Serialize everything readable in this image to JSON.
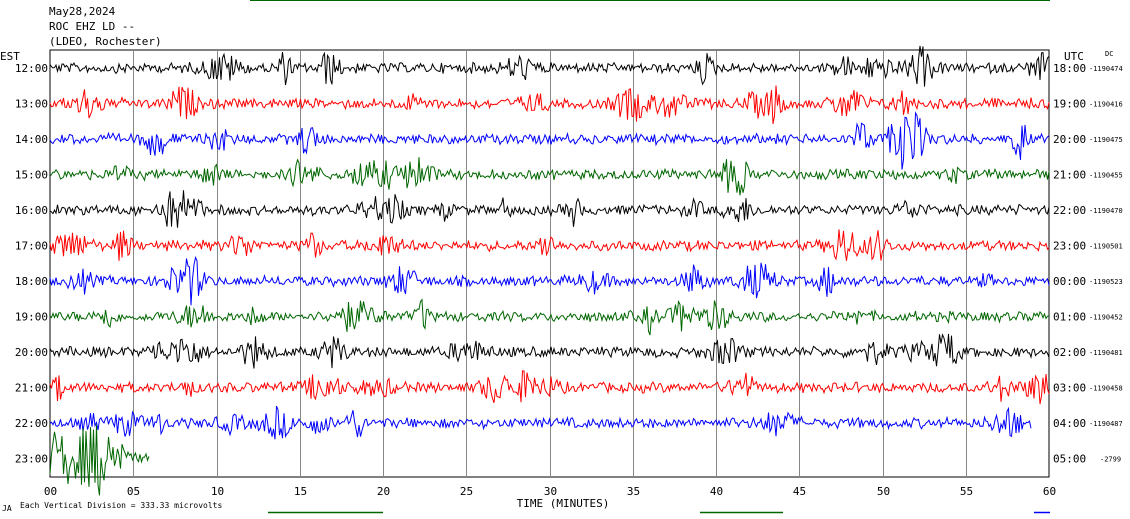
{
  "header": {
    "date": "May28,2024",
    "station": "ROC EHZ LD --",
    "network": "(LDEO, Rochester)"
  },
  "left_axis_label": "EST",
  "right_axis_label": "UTC",
  "dc_label": "DC",
  "footer_note": "Each Vertical Division =  333.33 microvolts",
  "footer_mark": "JA",
  "chart_data": {
    "type": "line",
    "title": "",
    "xlabel": "TIME (MINUTES)",
    "ylabel": "",
    "xlim": [
      0,
      60
    ],
    "x_ticks": [
      0,
      5,
      10,
      15,
      20,
      25,
      30,
      35,
      40,
      45,
      50,
      55,
      60
    ],
    "x_tick_labels": [
      "00",
      "05",
      "10",
      "15",
      "20",
      "25",
      "30",
      "35",
      "40",
      "45",
      "50",
      "55",
      "60"
    ],
    "grid": "vertical",
    "series_colors": [
      "#000000",
      "#ff0000",
      "#0000ff",
      "#006600"
    ],
    "traces": [
      {
        "est": "12:00",
        "utc": "18:00",
        "dc": "-1190474",
        "color": "#000000",
        "end_minute": 60
      },
      {
        "est": "13:00",
        "utc": "19:00",
        "dc": "-1190416",
        "color": "#ff0000",
        "end_minute": 60
      },
      {
        "est": "14:00",
        "utc": "20:00",
        "dc": "-1190475",
        "color": "#0000ff",
        "end_minute": 60
      },
      {
        "est": "15:00",
        "utc": "21:00",
        "dc": "-1190455",
        "color": "#006600",
        "end_minute": 60
      },
      {
        "est": "16:00",
        "utc": "22:00",
        "dc": "-1190470",
        "color": "#000000",
        "end_minute": 60
      },
      {
        "est": "17:00",
        "utc": "23:00",
        "dc": "-1190501",
        "color": "#ff0000",
        "end_minute": 60
      },
      {
        "est": "18:00",
        "utc": "00:00",
        "dc": "-1190523",
        "color": "#0000ff",
        "end_minute": 60
      },
      {
        "est": "19:00",
        "utc": "01:00",
        "dc": "-1190452",
        "color": "#006600",
        "end_minute": 60
      },
      {
        "est": "20:00",
        "utc": "02:00",
        "dc": "-1190481",
        "color": "#000000",
        "end_minute": 60
      },
      {
        "est": "21:00",
        "utc": "03:00",
        "dc": "-1190458",
        "color": "#ff0000",
        "end_minute": 60
      },
      {
        "est": "22:00",
        "utc": "04:00",
        "dc": "-1190487",
        "color": "#0000ff",
        "end_minute": 59
      },
      {
        "est": "23:00",
        "utc": "05:00",
        "dc": "-2799",
        "color": "#006600",
        "end_minute": 6
      }
    ]
  }
}
